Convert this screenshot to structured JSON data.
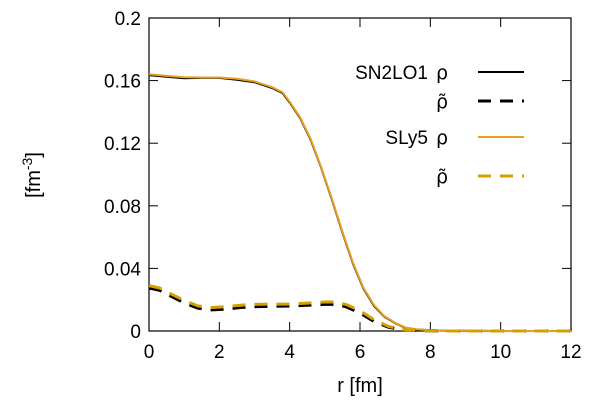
{
  "chart_data": {
    "type": "line",
    "title": "",
    "xlabel": "r [fm]",
    "ylabel_base": "[fm",
    "ylabel_exp": "-3",
    "ylabel_close": "]",
    "xlim": [
      0,
      12
    ],
    "ylim": [
      0,
      0.2
    ],
    "xticks": [
      0,
      2,
      4,
      6,
      8,
      10,
      12
    ],
    "xtick_labels": [
      "0",
      "2",
      "4",
      "6",
      "8",
      "10",
      "12"
    ],
    "yticks": [
      0,
      0.04,
      0.08,
      0.12,
      0.16,
      0.2
    ],
    "ytick_labels": [
      "0",
      "0.04",
      "0.08",
      "0.12",
      "0.16",
      "0.2"
    ],
    "grid": false,
    "legend_position": "top-right",
    "series": [
      {
        "name": "SN2LO1",
        "symbol": "ρ",
        "color": "#000000",
        "dash": "solid",
        "x": [
          0,
          0.5,
          1,
          1.5,
          2,
          2.5,
          3,
          3.5,
          3.8,
          4,
          4.3,
          4.6,
          4.9,
          5.2,
          5.5,
          5.8,
          6.1,
          6.4,
          6.7,
          7,
          7.3,
          7.6,
          8,
          8.5,
          9,
          10,
          11,
          12
        ],
        "y": [
          0.1635,
          0.1625,
          0.1615,
          0.1617,
          0.1617,
          0.1606,
          0.159,
          0.1553,
          0.152,
          0.146,
          0.136,
          0.122,
          0.104,
          0.084,
          0.063,
          0.043,
          0.027,
          0.016,
          0.009,
          0.005,
          0.002,
          0.001,
          0.0005,
          0.0002,
          0.0001,
          0,
          0,
          0
        ]
      },
      {
        "name": "",
        "symbol": "ρ̃",
        "color": "#000000",
        "dash": "dashed",
        "x": [
          0,
          0.3,
          0.6,
          1,
          1.4,
          1.8,
          2.2,
          2.6,
          3,
          3.5,
          4,
          4.5,
          5,
          5.3,
          5.6,
          6,
          6.4,
          6.8,
          7.2,
          7.6,
          8,
          8.5,
          9,
          10,
          11,
          12
        ],
        "y": [
          0.0275,
          0.026,
          0.0225,
          0.018,
          0.0145,
          0.0135,
          0.014,
          0.015,
          0.0155,
          0.0158,
          0.016,
          0.0165,
          0.017,
          0.017,
          0.0155,
          0.0115,
          0.006,
          0.0025,
          0.0008,
          0.0003,
          0.0001,
          0,
          0,
          0,
          0,
          0
        ]
      },
      {
        "name": "SLy5",
        "symbol": "ρ",
        "color": "#e8a020",
        "dash": "solid",
        "x": [
          0,
          0.5,
          1,
          1.5,
          2,
          2.5,
          3,
          3.5,
          3.8,
          4,
          4.3,
          4.6,
          4.9,
          5.2,
          5.5,
          5.8,
          6.1,
          6.4,
          6.7,
          7,
          7.3,
          7.6,
          8,
          8.5,
          9,
          10,
          11,
          12
        ],
        "y": [
          0.164,
          0.163,
          0.1622,
          0.162,
          0.162,
          0.1612,
          0.1595,
          0.1558,
          0.1525,
          0.1465,
          0.1365,
          0.1225,
          0.1045,
          0.0845,
          0.0635,
          0.0435,
          0.0275,
          0.0165,
          0.0093,
          0.0052,
          0.0022,
          0.0011,
          0.0005,
          0.0002,
          0.0001,
          0,
          0,
          0
        ]
      },
      {
        "name": "",
        "symbol": "ρ̃",
        "color": "#d4a000",
        "dash": "dashed",
        "x": [
          0,
          0.3,
          0.6,
          1,
          1.4,
          1.8,
          2.2,
          2.6,
          3,
          3.5,
          4,
          4.5,
          5,
          5.3,
          5.6,
          6,
          6.4,
          6.8,
          7.2,
          7.6,
          8,
          8.5,
          9,
          10,
          11,
          12
        ],
        "y": [
          0.029,
          0.0275,
          0.024,
          0.0195,
          0.016,
          0.015,
          0.0155,
          0.0165,
          0.017,
          0.0172,
          0.0172,
          0.0178,
          0.0185,
          0.0185,
          0.017,
          0.013,
          0.0072,
          0.003,
          0.001,
          0.0004,
          0.0001,
          0,
          0,
          0,
          0,
          0
        ]
      }
    ]
  }
}
